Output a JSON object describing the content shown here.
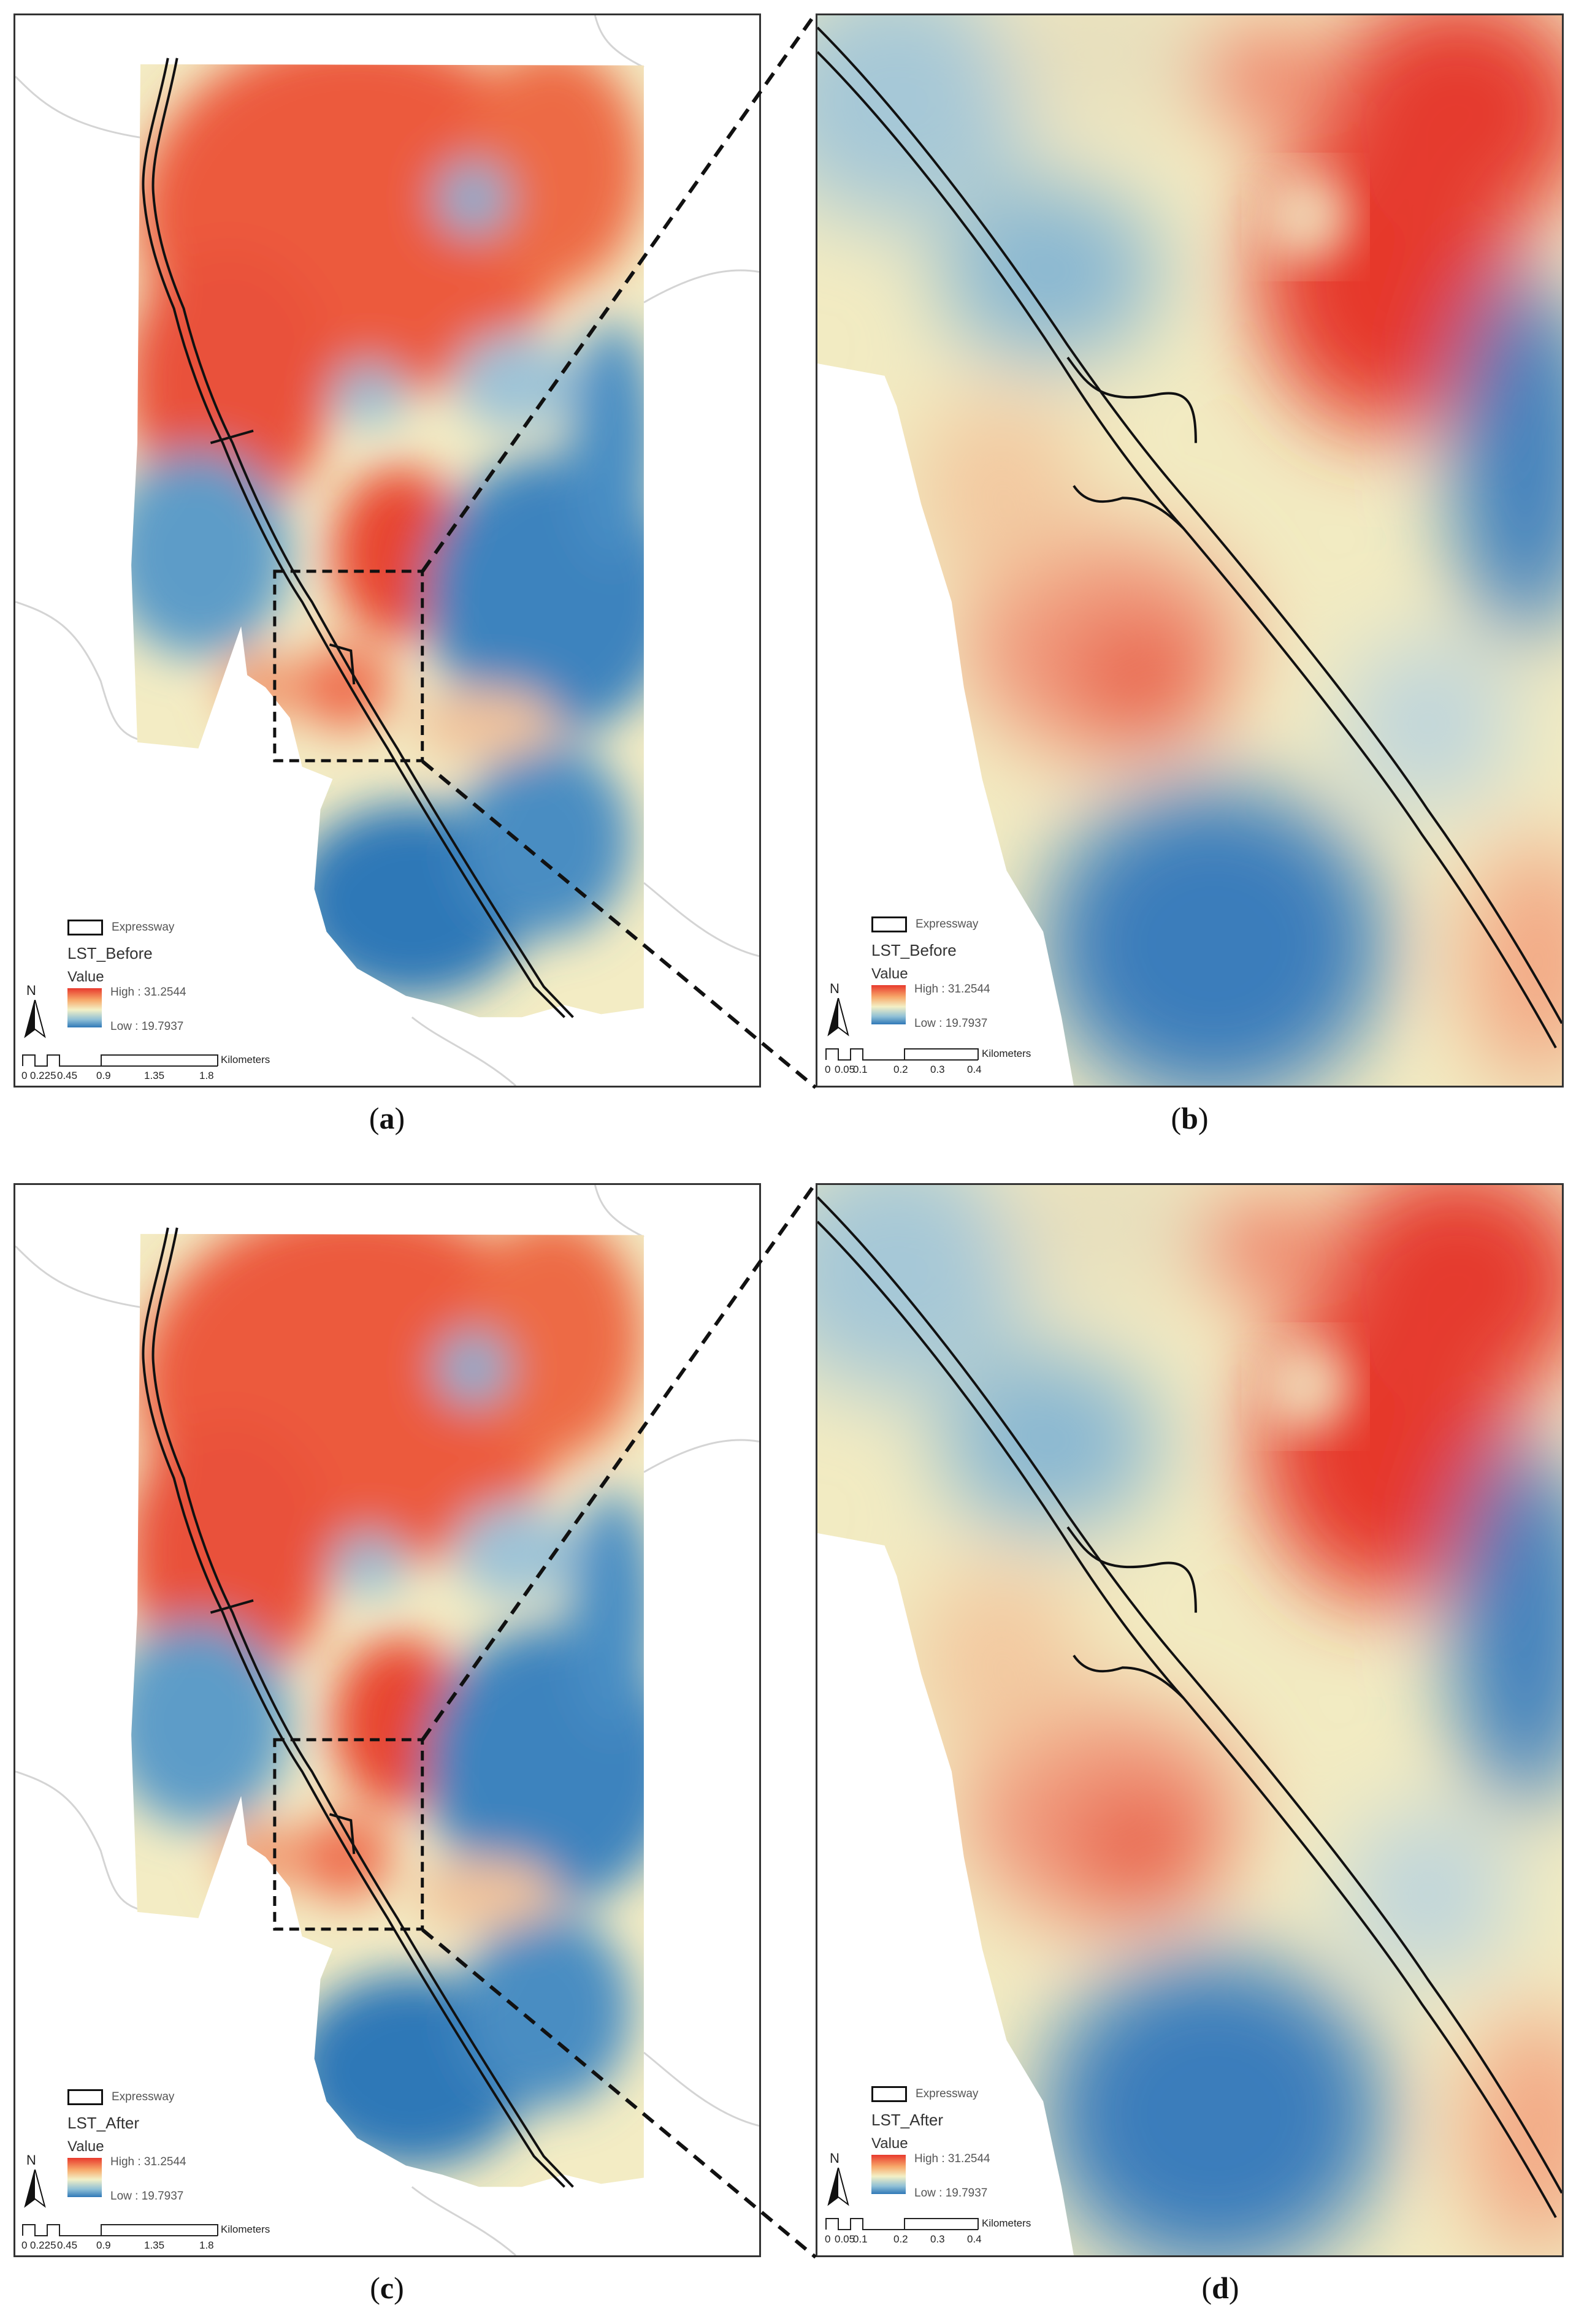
{
  "figure": {
    "panels": [
      {
        "id": "a",
        "type": "overview",
        "caption": "a",
        "layer": "LST_Before"
      },
      {
        "id": "b",
        "type": "detail",
        "caption": "b",
        "layer": "LST_Before"
      },
      {
        "id": "c",
        "type": "overview",
        "caption": "c",
        "layer": "LST_After"
      },
      {
        "id": "d",
        "type": "detail",
        "caption": "d",
        "layer": "LST_After"
      }
    ]
  },
  "legend": {
    "expressway_label": "Expressway",
    "value_label": "Value",
    "high_label": "High : 31.2544",
    "low_label": "Low : 19.7937",
    "high_value": 31.2544,
    "low_value": 19.7937,
    "ramp_colors": [
      "#e8392d",
      "#f7a86a",
      "#f3f0c6",
      "#8fc0d6",
      "#2f78b7"
    ]
  },
  "north_label": "N",
  "scale_overview": {
    "ticks": [
      "0",
      "0.225",
      "0.45",
      "0.9",
      "1.35",
      "1.8"
    ],
    "unit": "Kilometers"
  },
  "scale_detail": {
    "ticks": [
      "0",
      "0.05",
      "0.1",
      "0.2",
      "0.3",
      "0.4"
    ],
    "unit": "Kilometers"
  },
  "colors": {
    "high": "#e8392d",
    "mid": "#f3f0c6",
    "low": "#2f78b7",
    "road": "#111111"
  }
}
